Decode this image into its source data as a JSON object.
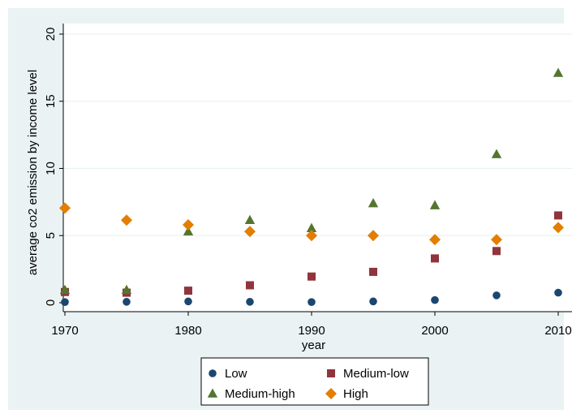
{
  "chart_data": {
    "type": "scatter",
    "title": "",
    "xlabel": "year",
    "ylabel": "average co2 emission by income level",
    "xlim": [
      1970,
      2010
    ],
    "ylim": [
      0,
      20
    ],
    "xticks": [
      1970,
      1980,
      1990,
      2000,
      2010
    ],
    "yticks": [
      0,
      5,
      10,
      15,
      20
    ],
    "grid": "horizontal",
    "legend_position": "bottom",
    "x": [
      1970,
      1975,
      1980,
      1985,
      1990,
      1995,
      2000,
      2005,
      2010
    ],
    "series": [
      {
        "name": "Low",
        "marker": "circle",
        "color": "#1a476f",
        "values": [
          0.05,
          0.07,
          0.1,
          0.07,
          0.05,
          0.1,
          0.2,
          0.55,
          0.75
        ]
      },
      {
        "name": "Medium-low",
        "marker": "square",
        "color": "#90353b",
        "values": [
          0.8,
          0.75,
          0.9,
          1.3,
          1.95,
          2.3,
          3.3,
          3.85,
          6.5
        ]
      },
      {
        "name": "Medium-high",
        "marker": "triangle",
        "color": "#55752f",
        "values": [
          0.95,
          0.95,
          5.3,
          6.15,
          5.55,
          7.4,
          7.25,
          11.05,
          17.1
        ]
      },
      {
        "name": "High",
        "marker": "diamond",
        "color": "#e37e00",
        "values": [
          7.05,
          6.15,
          5.8,
          5.3,
          5.0,
          5.0,
          4.7,
          4.7,
          5.6
        ]
      }
    ]
  },
  "colors": {
    "outer_background": "#eaf2f3",
    "plot_background": "#ffffff",
    "grid": "#eaf2f3"
  }
}
